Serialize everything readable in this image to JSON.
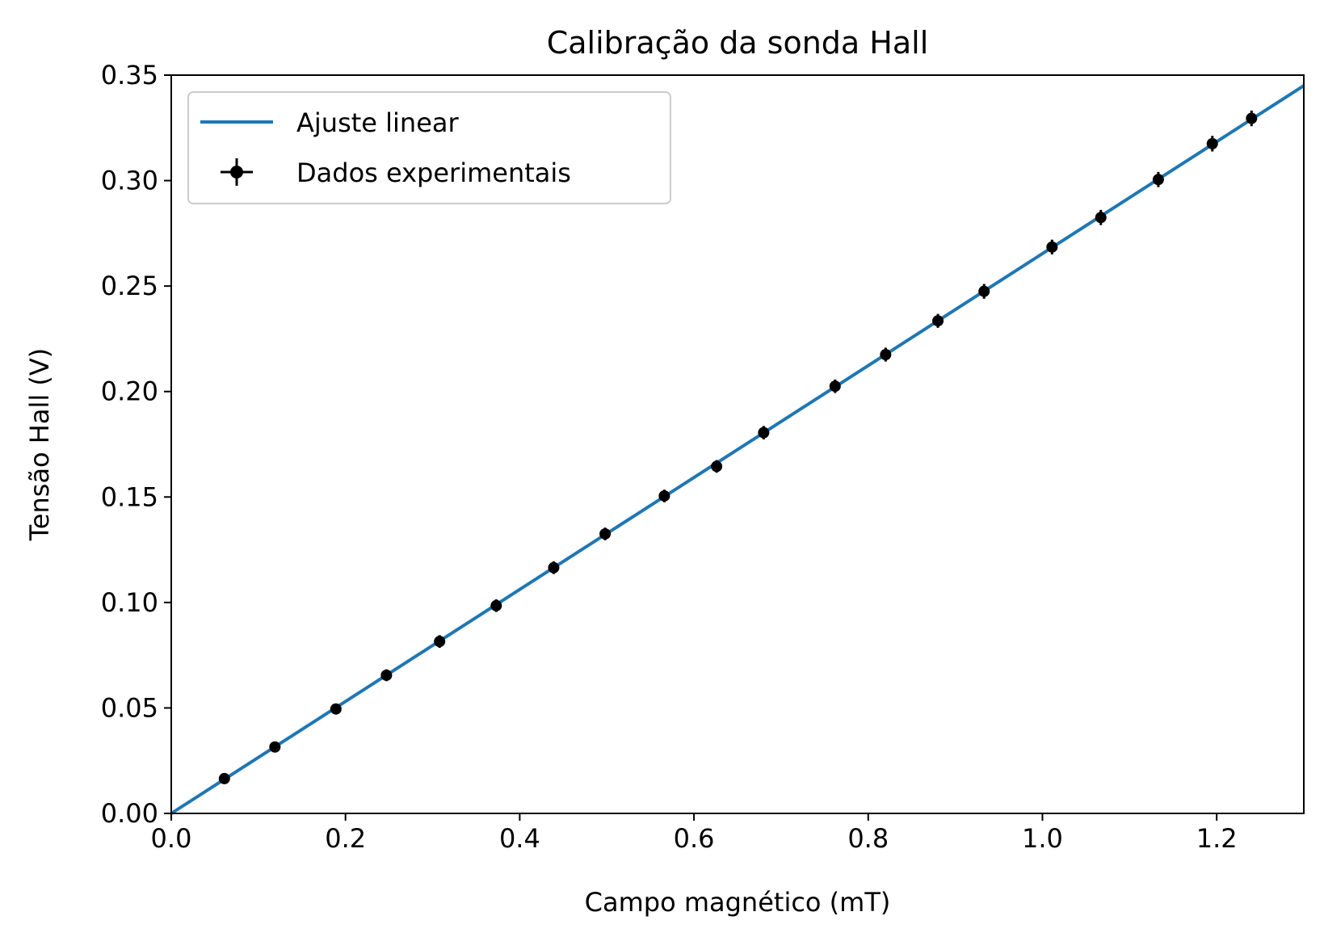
{
  "chart_data": {
    "type": "scatter",
    "title": "Calibração da sonda Hall",
    "xlabel": "Campo magnético (mT)",
    "ylabel": "Tensão Hall (V)",
    "xlim": [
      0.0,
      1.3
    ],
    "ylim": [
      0.0,
      0.35
    ],
    "xticks": [
      "0.0",
      "0.2",
      "0.4",
      "0.6",
      "0.8",
      "1.0",
      "1.2"
    ],
    "yticks": [
      "0.00",
      "0.05",
      "0.10",
      "0.15",
      "0.20",
      "0.25",
      "0.30",
      "0.35"
    ],
    "grid": false,
    "legend_position": "top-left",
    "series": [
      {
        "name": "Ajuste linear",
        "kind": "line",
        "color": "#1f77b4",
        "x": [
          0.0,
          1.3
        ],
        "y": [
          0.0,
          0.345
        ]
      },
      {
        "name": "Dados experimentais",
        "kind": "errorbar",
        "color": "#000000",
        "x": [
          0.061,
          0.119,
          0.189,
          0.247,
          0.308,
          0.373,
          0.439,
          0.498,
          0.566,
          0.626,
          0.68,
          0.762,
          0.82,
          0.88,
          0.933,
          1.011,
          1.067,
          1.133,
          1.195,
          1.24
        ],
        "y": [
          0.0165,
          0.0315,
          0.0495,
          0.0655,
          0.0815,
          0.0985,
          0.1165,
          0.1325,
          0.1505,
          0.1645,
          0.1805,
          0.2025,
          0.2175,
          0.2335,
          0.2475,
          0.2685,
          0.2825,
          0.3005,
          0.3175,
          0.3295
        ],
        "yerr": [
          0.0025,
          0.0025,
          0.0025,
          0.0028,
          0.003,
          0.003,
          0.003,
          0.003,
          0.003,
          0.003,
          0.0032,
          0.0032,
          0.0033,
          0.0033,
          0.0035,
          0.0035,
          0.0036,
          0.0036,
          0.0037,
          0.0037
        ]
      }
    ]
  }
}
